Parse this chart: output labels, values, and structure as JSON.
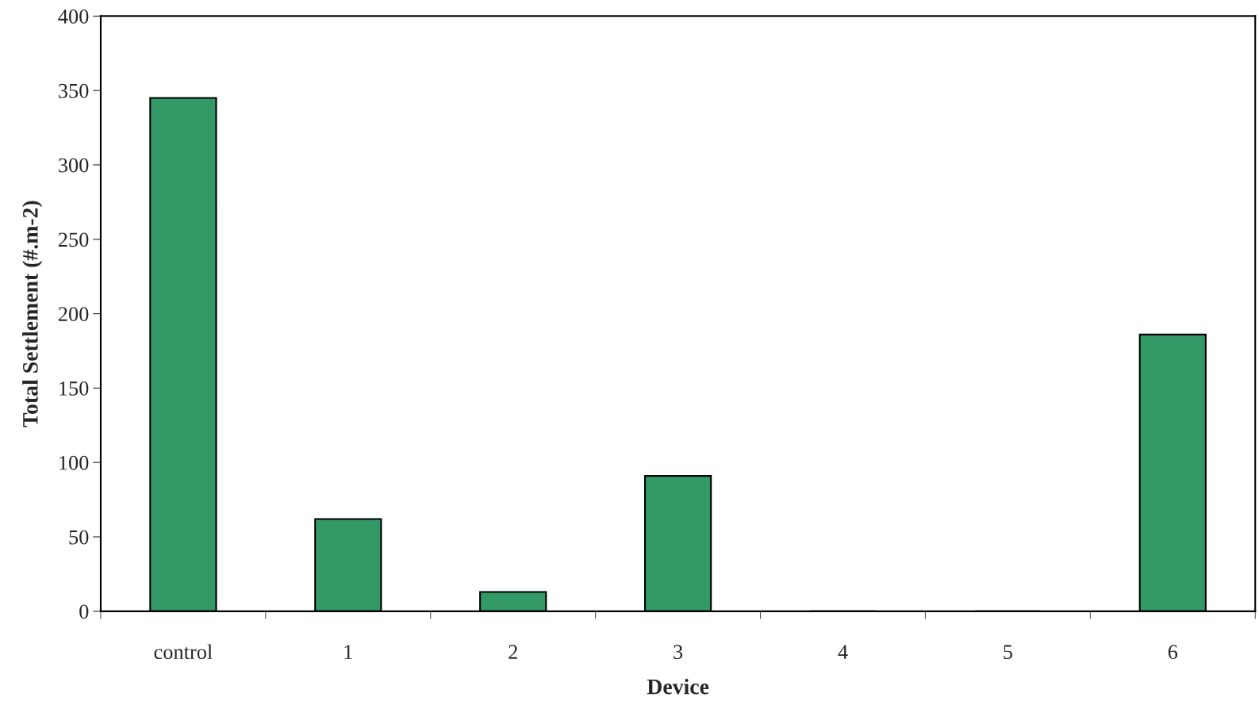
{
  "chart_data": {
    "type": "bar",
    "xlabel": "Device",
    "ylabel": "Total Settlement (#.m-2)",
    "categories": [
      "control",
      "1",
      "2",
      "3",
      "4",
      "5",
      "6"
    ],
    "values": [
      345,
      62,
      13,
      91,
      0,
      0,
      186
    ],
    "color": "#339966",
    "ylim": [
      0,
      400
    ],
    "yticks": [
      0,
      50,
      100,
      150,
      200,
      250,
      300,
      350,
      400
    ],
    "grid": false,
    "legend": false
  }
}
